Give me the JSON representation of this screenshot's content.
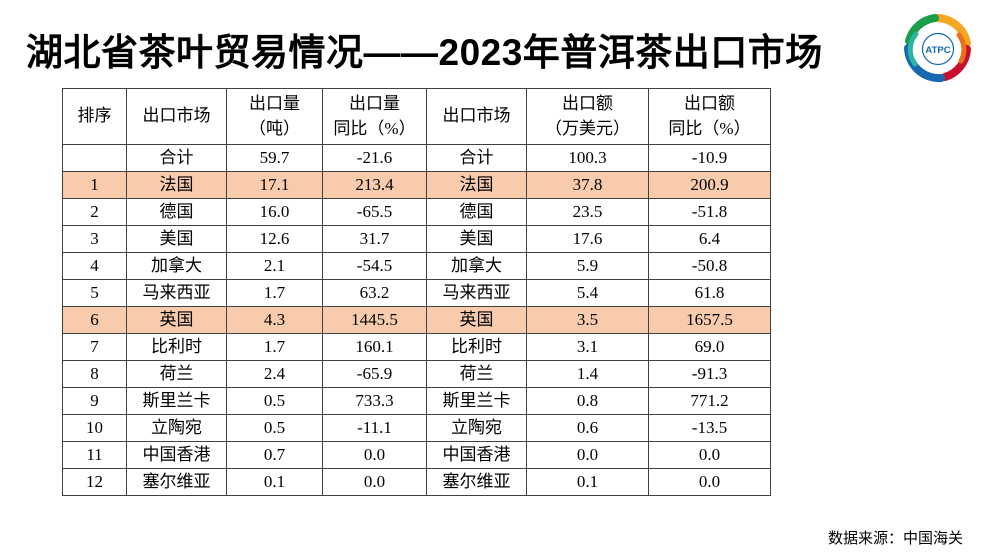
{
  "slide": {
    "title": "湖北省茶叶贸易情况——2023年普洱茶出口市场",
    "logo_text": "ATPC",
    "source": "数据来源：中国海关",
    "highlight_color": "#F8CBAD"
  },
  "table": {
    "headers": [
      "排序",
      "出口市场",
      "出口量\n（吨）",
      "出口量\n同比（%）",
      "出口市场",
      "出口额\n（万美元）",
      "出口额\n同比（%）"
    ],
    "rows": [
      {
        "highlight": false,
        "cells": [
          "",
          "合计",
          "59.7",
          "-21.6",
          "合计",
          "100.3",
          "-10.9"
        ]
      },
      {
        "highlight": true,
        "cells": [
          "1",
          "法国",
          "17.1",
          "213.4",
          "法国",
          "37.8",
          "200.9"
        ]
      },
      {
        "highlight": false,
        "cells": [
          "2",
          "德国",
          "16.0",
          "-65.5",
          "德国",
          "23.5",
          "-51.8"
        ]
      },
      {
        "highlight": false,
        "cells": [
          "3",
          "美国",
          "12.6",
          "31.7",
          "美国",
          "17.6",
          "6.4"
        ]
      },
      {
        "highlight": false,
        "cells": [
          "4",
          "加拿大",
          "2.1",
          "-54.5",
          "加拿大",
          "5.9",
          "-50.8"
        ]
      },
      {
        "highlight": false,
        "cells": [
          "5",
          "马来西亚",
          "1.7",
          "63.2",
          "马来西亚",
          "5.4",
          "61.8"
        ]
      },
      {
        "highlight": true,
        "cells": [
          "6",
          "英国",
          "4.3",
          "1445.5",
          "英国",
          "3.5",
          "1657.5"
        ]
      },
      {
        "highlight": false,
        "cells": [
          "7",
          "比利时",
          "1.7",
          "160.1",
          "比利时",
          "3.1",
          "69.0"
        ]
      },
      {
        "highlight": false,
        "cells": [
          "8",
          "荷兰",
          "2.4",
          "-65.9",
          "荷兰",
          "1.4",
          "-91.3"
        ]
      },
      {
        "highlight": false,
        "cells": [
          "9",
          "斯里兰卡",
          "0.5",
          "733.3",
          "斯里兰卡",
          "0.8",
          "771.2"
        ]
      },
      {
        "highlight": false,
        "cells": [
          "10",
          "立陶宛",
          "0.5",
          "-11.1",
          "立陶宛",
          "0.6",
          "-13.5"
        ]
      },
      {
        "highlight": false,
        "cells": [
          "11",
          "中国香港",
          "0.7",
          "0.0",
          "中国香港",
          "0.0",
          "0.0"
        ]
      },
      {
        "highlight": false,
        "cells": [
          "12",
          "塞尔维亚",
          "0.1",
          "0.0",
          "塞尔维亚",
          "0.1",
          "0.0"
        ]
      }
    ]
  }
}
